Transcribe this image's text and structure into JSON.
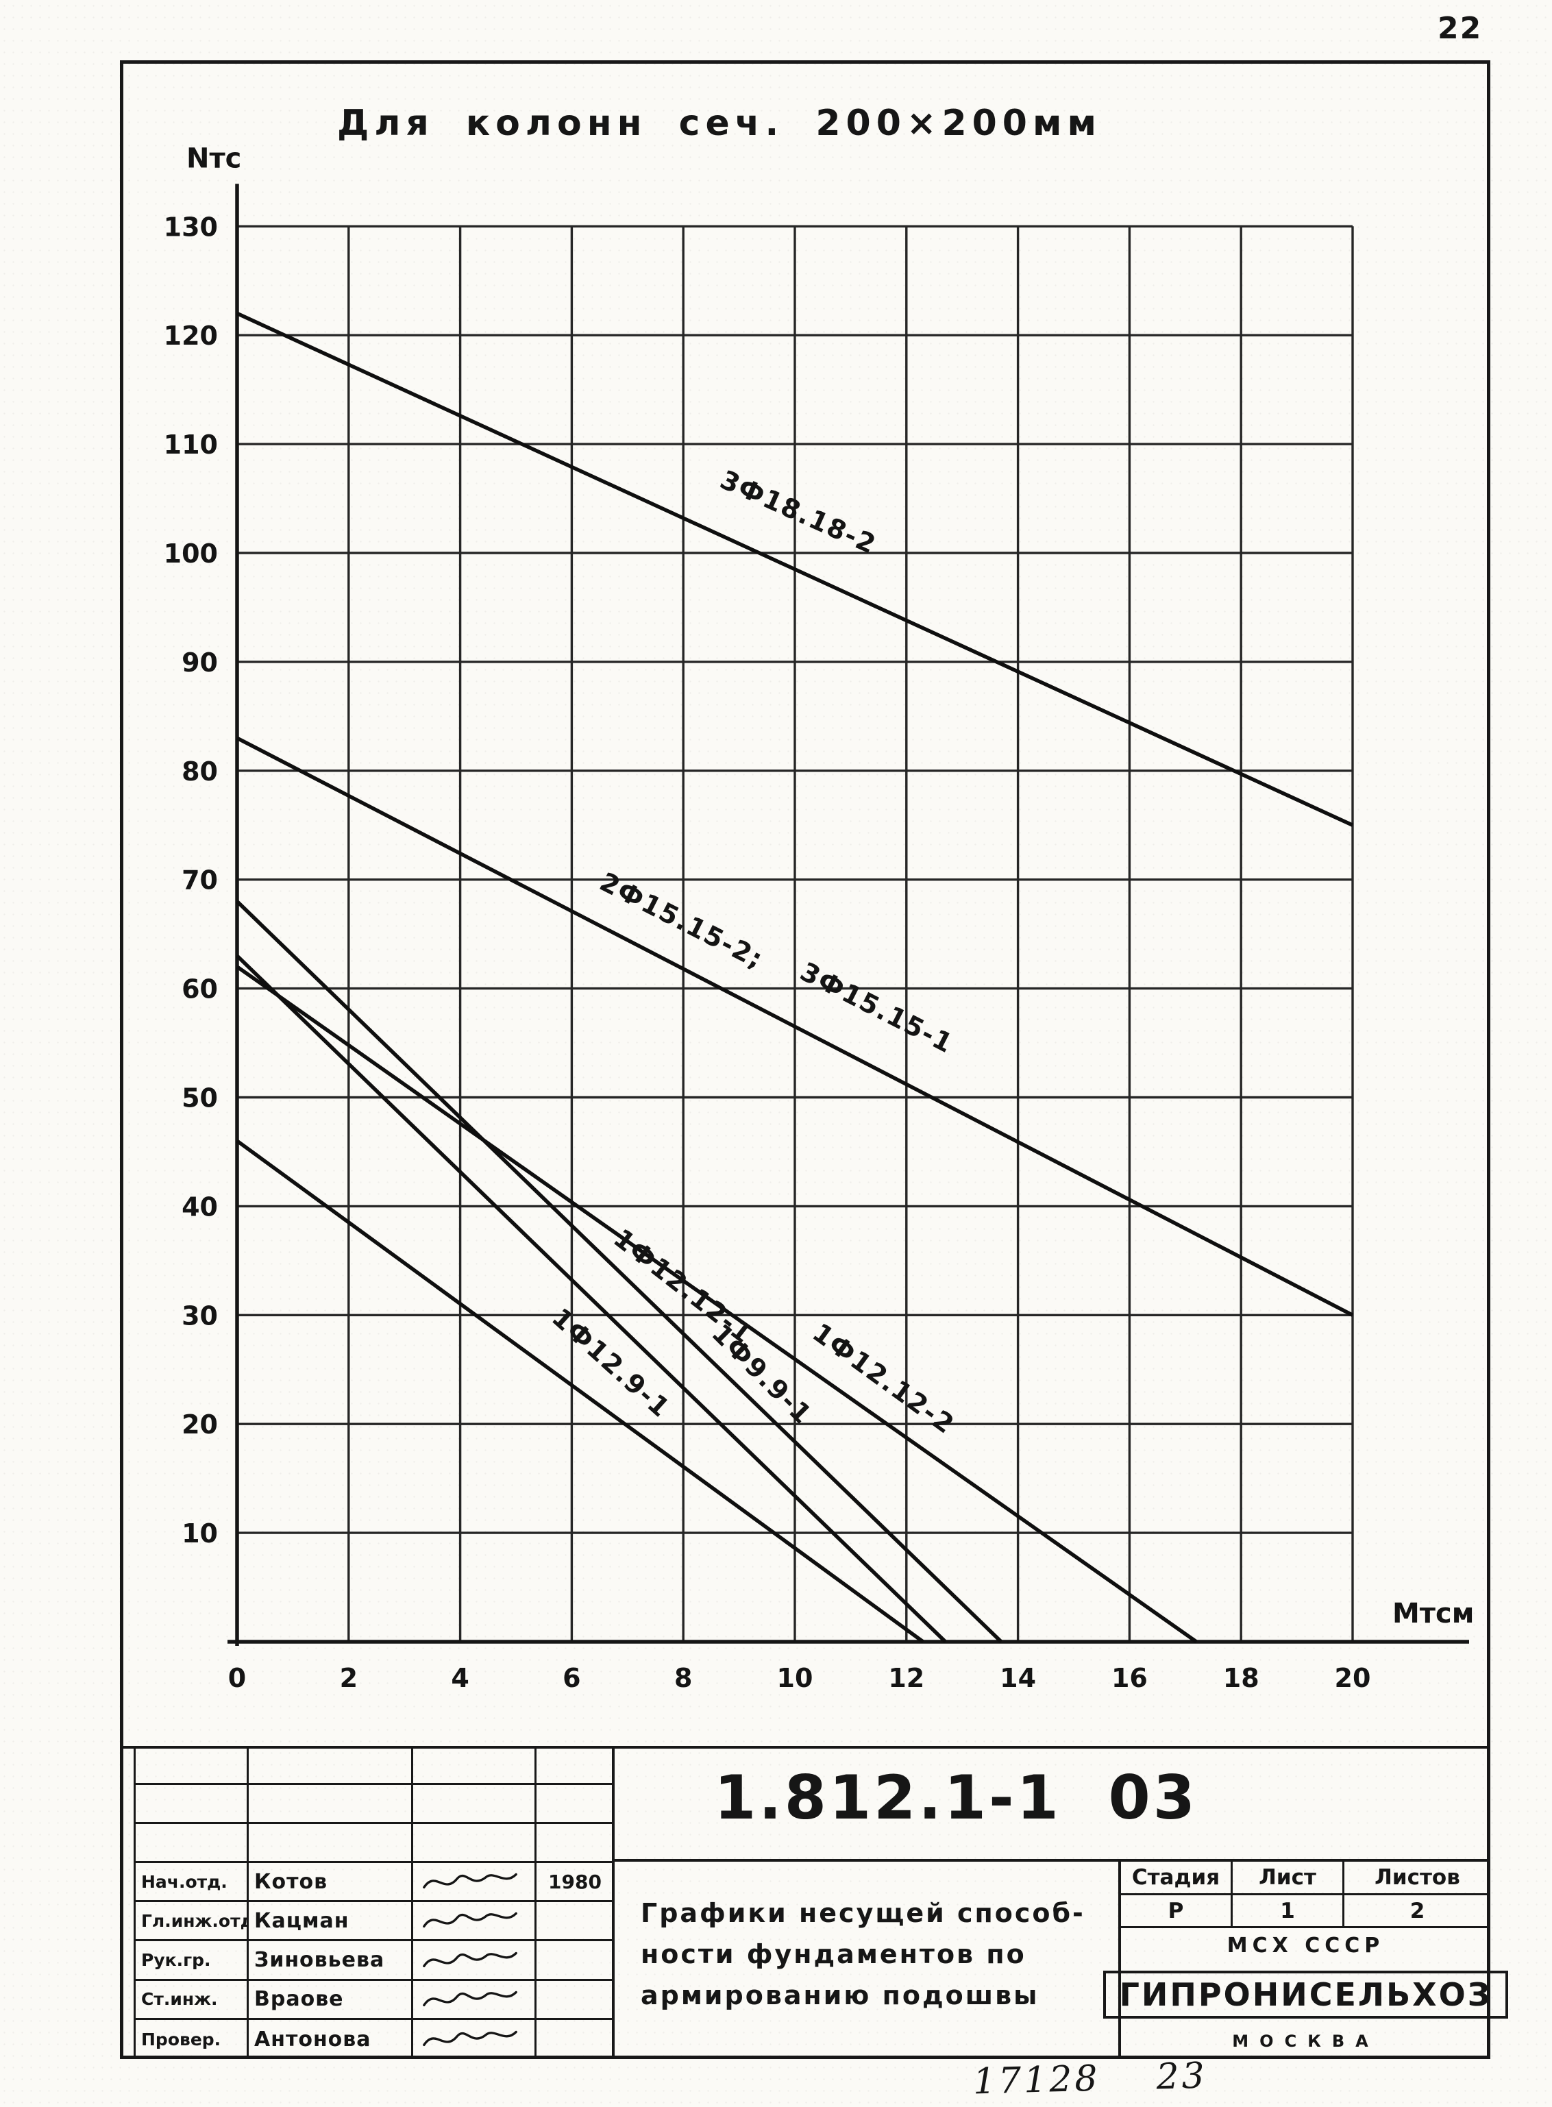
{
  "page": {
    "page_number": "22",
    "bottom_note": "17128    23"
  },
  "chart_data": {
    "type": "line",
    "title": "Для колонн сеч. 200×200мм",
    "xlabel": "Мтсм",
    "ylabel": "Nтс",
    "xlim": [
      0,
      20
    ],
    "ylim": [
      0,
      130
    ],
    "x_ticks": [
      0,
      2,
      4,
      6,
      8,
      10,
      12,
      14,
      16,
      18,
      20
    ],
    "y_ticks": [
      10,
      20,
      30,
      40,
      50,
      60,
      70,
      80,
      90,
      100,
      110,
      120,
      130
    ],
    "grid": true,
    "legend_position": "labels-on-lines",
    "series": [
      {
        "name": "3Ф18.18-2",
        "points": [
          [
            0,
            122
          ],
          [
            20,
            75
          ]
        ]
      },
      {
        "name": "2Ф15.15-2; 3Ф15.15-1",
        "points": [
          [
            0,
            83
          ],
          [
            20,
            30
          ]
        ]
      },
      {
        "name": "1Ф12.12-1",
        "points": [
          [
            0,
            68
          ],
          [
            13.7,
            0
          ]
        ]
      },
      {
        "name": "1Ф9.9-1",
        "points": [
          [
            0,
            63
          ],
          [
            12.7,
            0
          ]
        ]
      },
      {
        "name": "1Ф12.12-2",
        "points": [
          [
            0,
            62
          ],
          [
            17.2,
            0
          ]
        ]
      },
      {
        "name": "1Ф12.9-1",
        "points": [
          [
            0,
            46
          ],
          [
            12.3,
            0
          ]
        ]
      }
    ],
    "line_labels": [
      {
        "text": "3Ф18.18-2",
        "x": 10.0,
        "y": 103.0,
        "rot": 24
      },
      {
        "text": "2Ф15.15-2;",
        "x": 7.9,
        "y": 65.5,
        "rot": 27
      },
      {
        "text": "3Ф15.15-1",
        "x": 11.4,
        "y": 57.5,
        "rot": 27
      },
      {
        "text": "1Ф12.12-1",
        "x": 7.9,
        "y": 32.0,
        "rot": 38
      },
      {
        "text": "1Ф9.9-1",
        "x": 9.3,
        "y": 24.0,
        "rot": 45
      },
      {
        "text": "1Ф12.12-2",
        "x": 11.5,
        "y": 23.5,
        "rot": 36
      },
      {
        "text": "1Ф12.9-1",
        "x": 6.6,
        "y": 25.0,
        "rot": 42
      }
    ]
  },
  "title_block": {
    "doc_number": "1.812.1-1  03",
    "doc_title_lines": [
      "Графики несущей способ-",
      "ности фундаментов по",
      "армированию подошвы"
    ],
    "stage_table": {
      "headers": [
        "Стадия",
        "Лист",
        "Листов"
      ],
      "values": [
        "Р",
        "1",
        "2"
      ]
    },
    "org": {
      "ministry": "МСХ СССР",
      "name": "ГИПРОНИСЕЛЬХОЗ",
      "city": "МОСКВА"
    },
    "signatures": [
      {
        "role": "Нач.отд.",
        "name": "Котов",
        "date": "1980"
      },
      {
        "role": "Гл.инж.отд",
        "name": "Кацман",
        "date": ""
      },
      {
        "role": "Рук.гр.",
        "name": "Зиновьева",
        "date": ""
      },
      {
        "role": "Ст.инж.",
        "name": "Враове",
        "date": ""
      },
      {
        "role": "Провер.",
        "name": "Антонова",
        "date": ""
      }
    ]
  }
}
